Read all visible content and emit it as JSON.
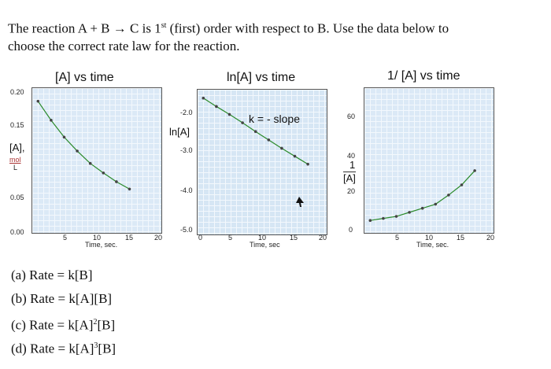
{
  "question": {
    "line1_pre": "The reaction A + B → C is 1",
    "line1_sup": "st",
    "line1_post": " (first) order with respect to B. Use the data below to",
    "line2": "choose the correct rate law for the reaction."
  },
  "chart_data": [
    {
      "type": "line",
      "title": "[A] vs time",
      "xlabel": "Time, sec.",
      "ylabel": "[A],",
      "ylabel_unit_num": "mol",
      "ylabel_unit_den": "L",
      "xlim": [
        0,
        20
      ],
      "ylim": [
        0.0,
        0.2
      ],
      "x_ticks": [
        "5",
        "10",
        "15",
        "20"
      ],
      "y_ticks": [
        "0.20",
        "0.15",
        "0.05",
        "0.00"
      ],
      "series": [
        {
          "x": [
            1,
            3,
            5,
            7,
            9,
            11,
            13,
            15
          ],
          "y": [
            0.181,
            0.155,
            0.132,
            0.113,
            0.096,
            0.083,
            0.071,
            0.061
          ],
          "color": "#2a8a2a"
        }
      ]
    },
    {
      "type": "line",
      "title": "ln[A] vs time",
      "xlabel": "Time, sec",
      "ylabel": "ln[A]",
      "annotation": "k = - slope",
      "xlim": [
        0,
        20
      ],
      "ylim": [
        -5.0,
        -1.5
      ],
      "x_ticks": [
        "5",
        "10",
        "15",
        "20"
      ],
      "y_ticks": [
        "-2.0",
        "-3.0",
        "-4.0",
        "-5.0",
        "0"
      ],
      "series": [
        {
          "x": [
            1,
            3,
            5,
            7,
            9,
            11,
            13,
            15,
            17
          ],
          "y": [
            -1.72,
            -1.92,
            -2.11,
            -2.31,
            -2.52,
            -2.72,
            -2.92,
            -3.11,
            -3.3
          ],
          "color": "#2a8a2a"
        }
      ]
    },
    {
      "type": "line",
      "title": "1/ [A] vs time",
      "xlabel": "Time, sec.",
      "ylabel_num": "1",
      "ylabel_den": "[A]",
      "xlim": [
        0,
        20
      ],
      "ylim": [
        0,
        72
      ],
      "x_ticks": [
        "5",
        "10",
        "15",
        "20"
      ],
      "y_ticks": [
        "60",
        "40",
        "20",
        "0"
      ],
      "series": [
        {
          "x": [
            1,
            3,
            5,
            7,
            9,
            11,
            13,
            15,
            17
          ],
          "y": [
            6.5,
            7.5,
            8.5,
            10.5,
            12.5,
            14.5,
            19,
            24,
            31
          ],
          "color": "#2a8a2a"
        }
      ]
    }
  ],
  "answers": {
    "a": "(a) Rate = k[B]",
    "b": "(b) Rate = k[A][B]",
    "c_pre": "(c) Rate = k[A]",
    "c_sup": "2",
    "c_post": "[B]",
    "d_pre": "(d) Rate = k[A]",
    "d_sup": "3",
    "d_post": "[B]"
  }
}
